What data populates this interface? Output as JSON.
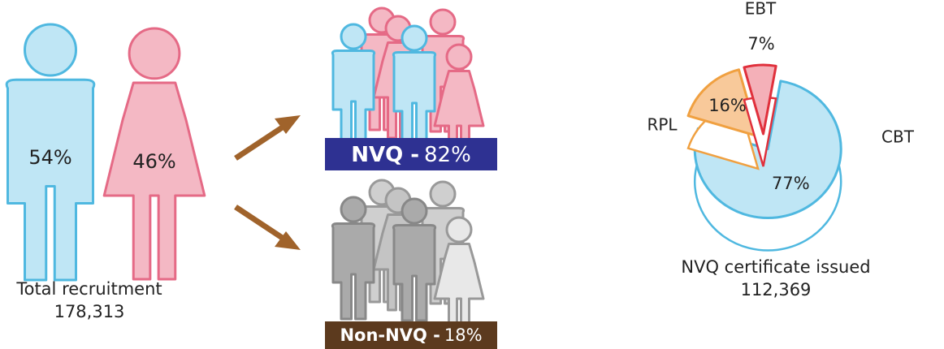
{
  "recruitment": {
    "male": "54%",
    "female": "46%",
    "label": "Total recruitment",
    "total": "178,313"
  },
  "nvq": {
    "name": "NVQ -",
    "share": "82%"
  },
  "non_nvq": {
    "name": "Non-NVQ -",
    "share": "18%"
  },
  "chart_data": {
    "type": "pie",
    "categories": [
      "CBT",
      "RPL",
      "EBT"
    ],
    "values": [
      77,
      16,
      7
    ],
    "value_labels": [
      "77%",
      "16%",
      "7%"
    ],
    "colors": [
      "#bfe6f5",
      "#f8c99a",
      "#f4b0b8"
    ],
    "title": "NVQ certificate issued",
    "subtitle": "112,369"
  }
}
